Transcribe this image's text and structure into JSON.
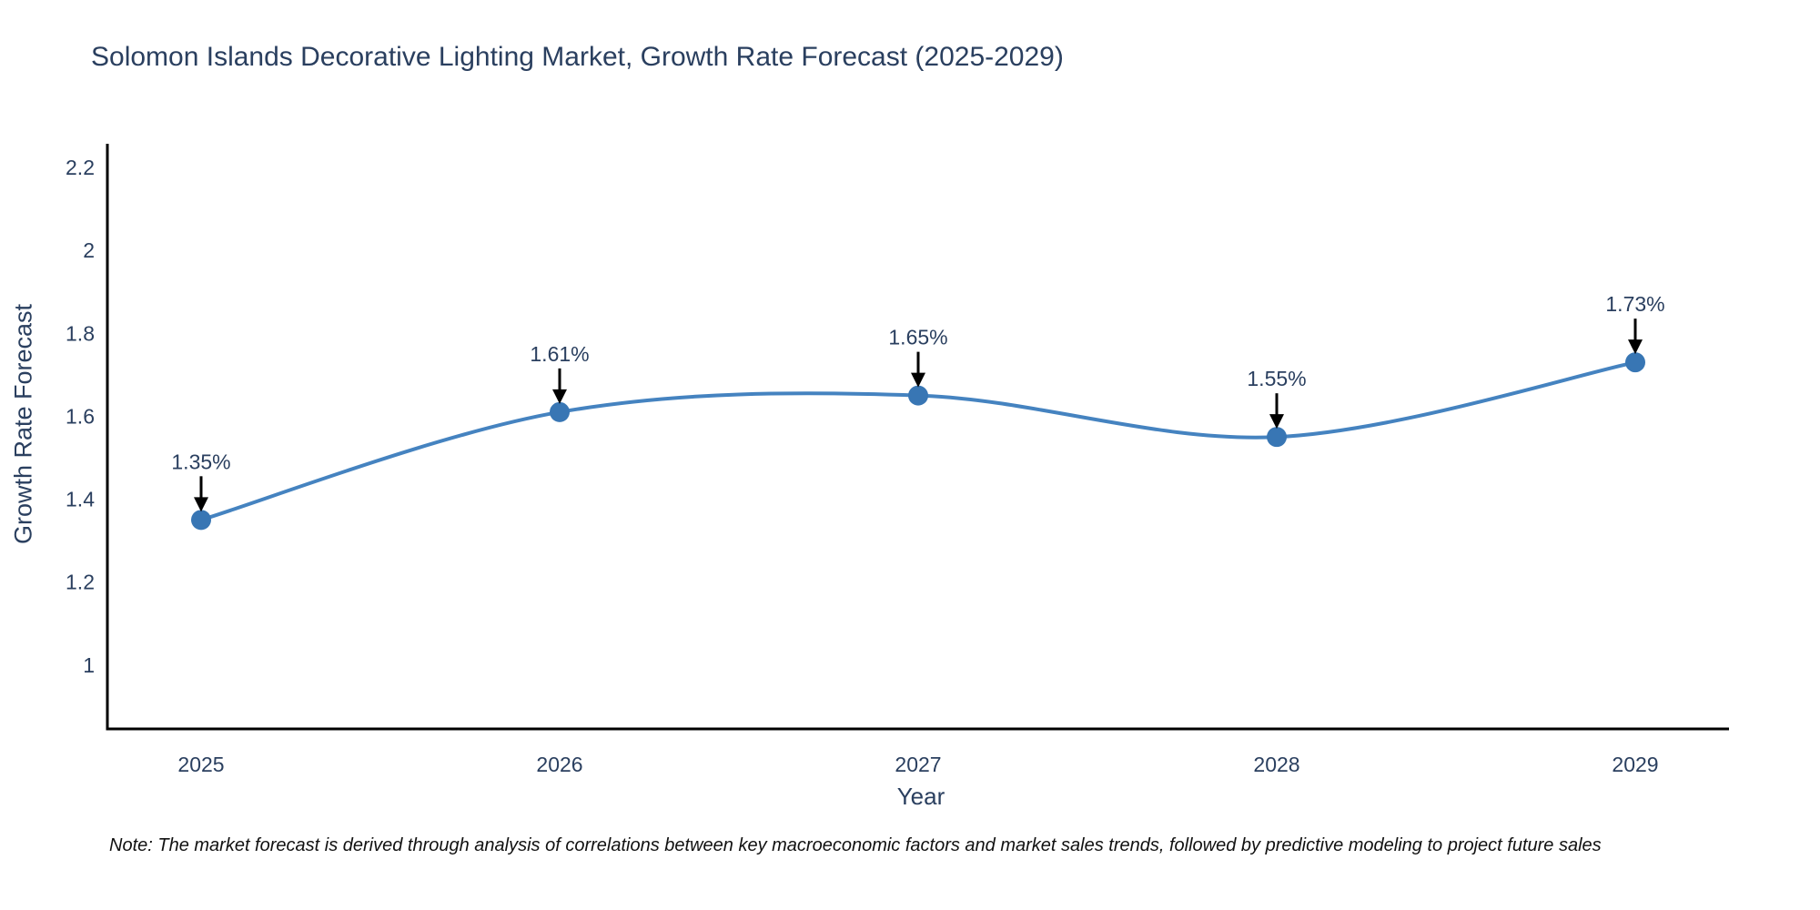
{
  "title": "Solomon Islands Decorative Lighting Market, Growth Rate Forecast (2025-2029)",
  "footnote": "Note: The market forecast is derived through analysis of correlations between key macroeconomic factors and market sales trends, followed by predictive modeling to project future sales",
  "chart_data": {
    "type": "line",
    "title": "Solomon Islands Decorative Lighting Market, Growth Rate Forecast (2025-2029)",
    "xlabel": "Year",
    "ylabel": "Growth Rate Forecast",
    "x": [
      2025,
      2026,
      2027,
      2028,
      2029
    ],
    "values": [
      1.35,
      1.61,
      1.65,
      1.55,
      1.73
    ],
    "point_labels": [
      "1.35%",
      "1.61%",
      "1.65%",
      "1.55%",
      "1.73%"
    ],
    "xtick_labels": [
      "2025",
      "2026",
      "2027",
      "2028",
      "2029"
    ],
    "yticks": [
      1,
      1.2,
      1.4,
      1.6,
      1.8,
      2,
      2.2
    ],
    "ytick_labels": [
      "1",
      "1.2",
      "1.4",
      "1.6",
      "1.8",
      "2",
      "2.2"
    ],
    "ylim": [
      0.846,
      2.257
    ],
    "line_shape": "spline",
    "grid": false,
    "legend_position": "none",
    "colors": {
      "line": "#4583c0",
      "marker": "#3876b4",
      "axis": "#000000",
      "tick_text": "#2a3f5f",
      "annotation_arrow": "#000000",
      "background": "#ffffff"
    }
  }
}
